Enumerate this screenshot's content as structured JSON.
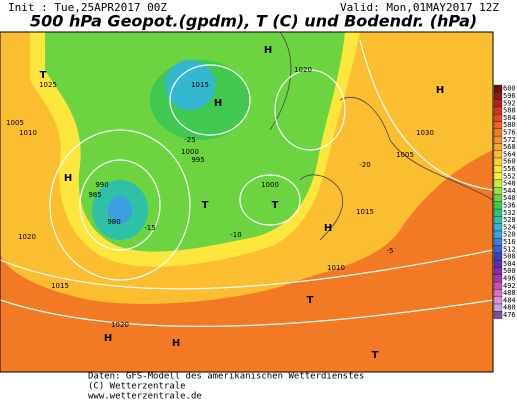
{
  "header": {
    "init": "Init : Tue,25APR2017 00Z",
    "valid": "Valid: Mon,01MAY2017 12Z",
    "title": "500 hPa Geopot.(gpdm), T (C) und Bodendr. (hPa)"
  },
  "colorbar": {
    "labels": [
      "600",
      "596",
      "592",
      "588",
      "584",
      "580",
      "576",
      "572",
      "568",
      "564",
      "560",
      "556",
      "552",
      "548",
      "544",
      "540",
      "536",
      "532",
      "528",
      "524",
      "520",
      "516",
      "512",
      "508",
      "504",
      "500",
      "496",
      "492",
      "488",
      "484",
      "480",
      "476"
    ],
    "colors": [
      "#6b1010",
      "#8c1a14",
      "#b0221a",
      "#d0321c",
      "#e04a1e",
      "#ec6420",
      "#f27a24",
      "#f59028",
      "#f8a82c",
      "#fbbe30",
      "#fdd236",
      "#fee63c",
      "#f2f040",
      "#c8ec40",
      "#9ee040",
      "#6cd440",
      "#40c850",
      "#30c078",
      "#30c0a8",
      "#34b8d0",
      "#3aa0e0",
      "#3a80e0",
      "#3a60d0",
      "#3a40c0",
      "#5a30b0",
      "#8030a8",
      "#a838a8",
      "#c850b8",
      "#d870c8",
      "#e090d8",
      "#c8a0e0",
      "#8050a0"
    ]
  },
  "map_labels": [
    "H",
    "H",
    "H",
    "H",
    "H",
    "H",
    "H",
    "T",
    "T",
    "T",
    "T",
    "T",
    "1025",
    "1015",
    "1020",
    "1005",
    "1010",
    "1000",
    "995",
    "1000",
    "990",
    "985",
    "980",
    "1015",
    "1010",
    "1020",
    "1015",
    "1020",
    "1005",
    "1030",
    "-15",
    "-10",
    "-5",
    "-20",
    "-25"
  ],
  "footer": [
    "Daten: GFS-Modell des amerikanischen Wetterdienstes",
    "(C) Wetterzentrale",
    "www.wetterzentrale.de"
  ]
}
